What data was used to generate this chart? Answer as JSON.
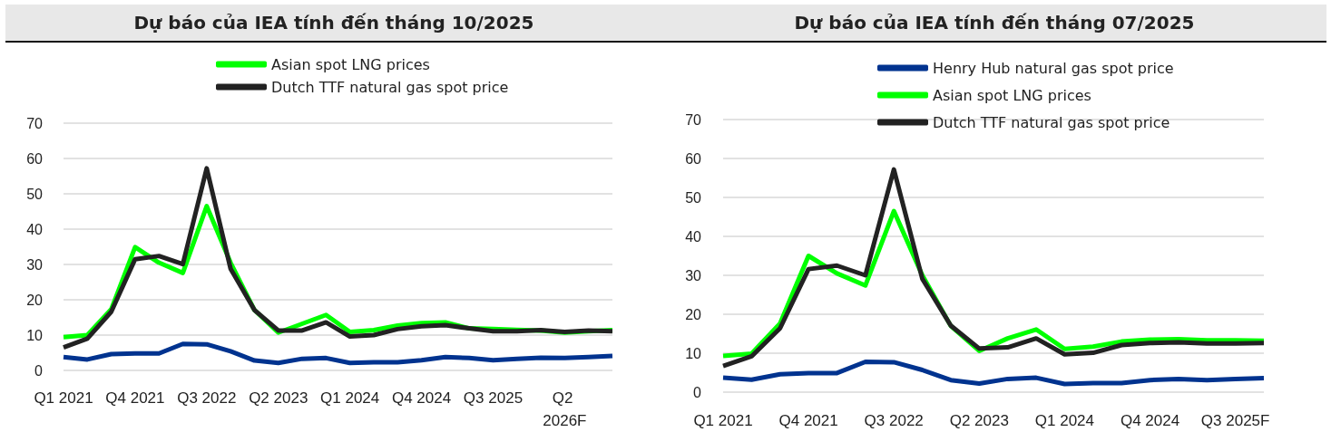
{
  "chart_data": [
    {
      "type": "line",
      "title": "Dự báo của IEA tính đến tháng 10/2025",
      "categories": [
        "Q1 2021",
        null,
        null,
        "Q4 2021",
        null,
        null,
        "Q3 2022",
        null,
        null,
        "Q2 2023",
        null,
        null,
        "Q1 2024",
        null,
        null,
        "Q4 2024",
        null,
        null,
        "Q3 2025",
        null,
        null,
        "Q2 2026F",
        null,
        null
      ],
      "series": [
        {
          "color": "#00338f",
          "values": [
            3.8,
            3.1,
            4.6,
            4.8,
            4.8,
            7.5,
            7.4,
            5.4,
            2.8,
            2.1,
            3.3,
            3.5,
            2.1,
            2.3,
            2.3,
            2.9,
            3.8,
            3.5,
            2.9,
            3.3,
            3.6,
            3.5,
            3.8,
            4.1
          ]
        },
        {
          "name": "Asian spot LNG prices",
          "color": "#00ff00",
          "values": [
            9.4,
            10.0,
            17.3,
            34.9,
            30.5,
            27.6,
            46.5,
            30.5,
            17.1,
            10.7,
            13.2,
            15.7,
            10.9,
            11.4,
            12.7,
            13.4,
            13.6,
            11.9,
            11.7,
            11.5,
            11.3,
            10.7,
            11.1,
            11.4
          ]
        },
        {
          "name": "Dutch TTF natural gas spot price",
          "color": "#222222",
          "values": [
            6.5,
            9.0,
            16.6,
            31.5,
            32.4,
            30.1,
            57.2,
            28.8,
            17.1,
            11.3,
            11.3,
            13.6,
            9.6,
            10.0,
            11.7,
            12.5,
            12.8,
            11.9,
            11.1,
            11.1,
            11.4,
            10.9,
            11.3,
            11.1
          ]
        }
      ],
      "ylim": [
        0,
        70
      ],
      "yticks": [
        0,
        10,
        20,
        30,
        40,
        50,
        60,
        70
      ],
      "grid": "y",
      "legend": "top",
      "marker": "none",
      "line_style": "solid"
    },
    {
      "type": "line",
      "title": "Dự báo của IEA tính đến tháng 07/2025",
      "categories": [
        "Q1 2021",
        null,
        null,
        "Q4 2021",
        null,
        null,
        "Q3 2022",
        null,
        null,
        "Q2 2023",
        null,
        null,
        "Q1 2024",
        null,
        null,
        "Q4 2024",
        null,
        null,
        "Q3 2025F",
        null
      ],
      "series": [
        {
          "name": "Henry Hub natural gas spot price",
          "color": "#00338f",
          "values": [
            3.7,
            3.2,
            4.6,
            4.9,
            4.9,
            7.8,
            7.7,
            5.7,
            3.1,
            2.2,
            3.4,
            3.7,
            2.1,
            2.3,
            2.3,
            3.1,
            3.4,
            3.1,
            3.4,
            3.6
          ]
        },
        {
          "name": "Asian spot LNG prices",
          "color": "#00ff00",
          "values": [
            9.3,
            9.9,
            17.6,
            35.0,
            30.5,
            27.4,
            46.5,
            30.0,
            17.0,
            10.6,
            13.8,
            16.1,
            11.1,
            11.7,
            13.0,
            13.5,
            13.6,
            13.3,
            13.3,
            13.2
          ]
        },
        {
          "name": "Dutch TTF natural gas spot price",
          "color": "#222222",
          "values": [
            6.7,
            9.2,
            16.4,
            31.6,
            32.5,
            30.0,
            57.2,
            29.1,
            17.1,
            11.2,
            11.5,
            13.8,
            9.7,
            10.1,
            12.1,
            12.6,
            12.8,
            12.5,
            12.5,
            12.6
          ]
        }
      ],
      "ylim": [
        0,
        70
      ],
      "yticks": [
        0,
        10,
        20,
        30,
        40,
        50,
        60,
        70
      ],
      "grid": "y",
      "legend": "top",
      "marker": "none",
      "line_style": "solid"
    }
  ]
}
